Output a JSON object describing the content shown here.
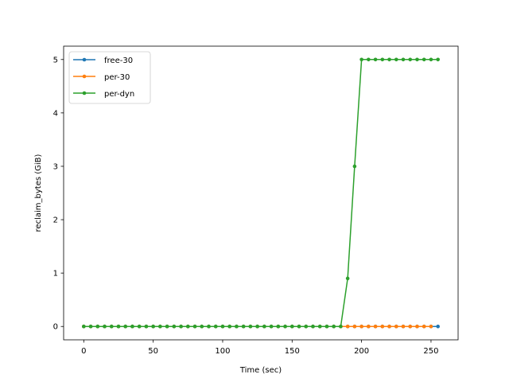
{
  "chart_data": {
    "type": "line",
    "xlabel": "Time (sec)",
    "ylabel": "reclaim_bytes (GiB)",
    "xlim": [
      -14.5,
      269.5
    ],
    "ylim": [
      -0.25,
      5.25
    ],
    "xticks": [
      0,
      50,
      100,
      150,
      200,
      250
    ],
    "yticks": [
      0,
      1,
      2,
      3,
      4,
      5
    ],
    "legend_position": "upper-left",
    "series": [
      {
        "name": "free-30",
        "color": "#1f77b4",
        "x": [
          0,
          5,
          10,
          15,
          20,
          25,
          30,
          35,
          40,
          45,
          50,
          55,
          60,
          65,
          70,
          75,
          80,
          85,
          90,
          95,
          100,
          105,
          110,
          115,
          120,
          125,
          130,
          135,
          140,
          145,
          150,
          155,
          160,
          165,
          170,
          175,
          180,
          185,
          190,
          195,
          200,
          205,
          210,
          215,
          220,
          225,
          230,
          235,
          240,
          245,
          250,
          255
        ],
        "y": [
          0,
          0,
          0,
          0,
          0,
          0,
          0,
          0,
          0,
          0,
          0,
          0,
          0,
          0,
          0,
          0,
          0,
          0,
          0,
          0,
          0,
          0,
          0,
          0,
          0,
          0,
          0,
          0,
          0,
          0,
          0,
          0,
          0,
          0,
          0,
          0,
          0,
          0,
          0,
          0,
          0,
          0,
          0,
          0,
          0,
          0,
          0,
          0,
          0,
          0,
          0,
          0
        ]
      },
      {
        "name": "per-30",
        "color": "#ff7f0e",
        "x": [
          0,
          5,
          10,
          15,
          20,
          25,
          30,
          35,
          40,
          45,
          50,
          55,
          60,
          65,
          70,
          75,
          80,
          85,
          90,
          95,
          100,
          105,
          110,
          115,
          120,
          125,
          130,
          135,
          140,
          145,
          150,
          155,
          160,
          165,
          170,
          175,
          180,
          185,
          190,
          195,
          200,
          205,
          210,
          215,
          220,
          225,
          230,
          235,
          240,
          245,
          250
        ],
        "y": [
          0,
          0,
          0,
          0,
          0,
          0,
          0,
          0,
          0,
          0,
          0,
          0,
          0,
          0,
          0,
          0,
          0,
          0,
          0,
          0,
          0,
          0,
          0,
          0,
          0,
          0,
          0,
          0,
          0,
          0,
          0,
          0,
          0,
          0,
          0,
          0,
          0,
          0,
          0,
          0,
          0,
          0,
          0,
          0,
          0,
          0,
          0,
          0,
          0,
          0,
          0
        ]
      },
      {
        "name": "per-dyn",
        "color": "#2ca02c",
        "x": [
          0,
          5,
          10,
          15,
          20,
          25,
          30,
          35,
          40,
          45,
          50,
          55,
          60,
          65,
          70,
          75,
          80,
          85,
          90,
          95,
          100,
          105,
          110,
          115,
          120,
          125,
          130,
          135,
          140,
          145,
          150,
          155,
          160,
          165,
          170,
          175,
          180,
          185,
          190,
          195,
          200,
          205,
          210,
          215,
          220,
          225,
          230,
          235,
          240,
          245,
          250,
          255
        ],
        "y": [
          0,
          0,
          0,
          0,
          0,
          0,
          0,
          0,
          0,
          0,
          0,
          0,
          0,
          0,
          0,
          0,
          0,
          0,
          0,
          0,
          0,
          0,
          0,
          0,
          0,
          0,
          0,
          0,
          0,
          0,
          0,
          0,
          0,
          0,
          0,
          0,
          0,
          0,
          0.9,
          3.0,
          5,
          5,
          5,
          5,
          5,
          5,
          5,
          5,
          5,
          5,
          5,
          5
        ]
      }
    ]
  }
}
